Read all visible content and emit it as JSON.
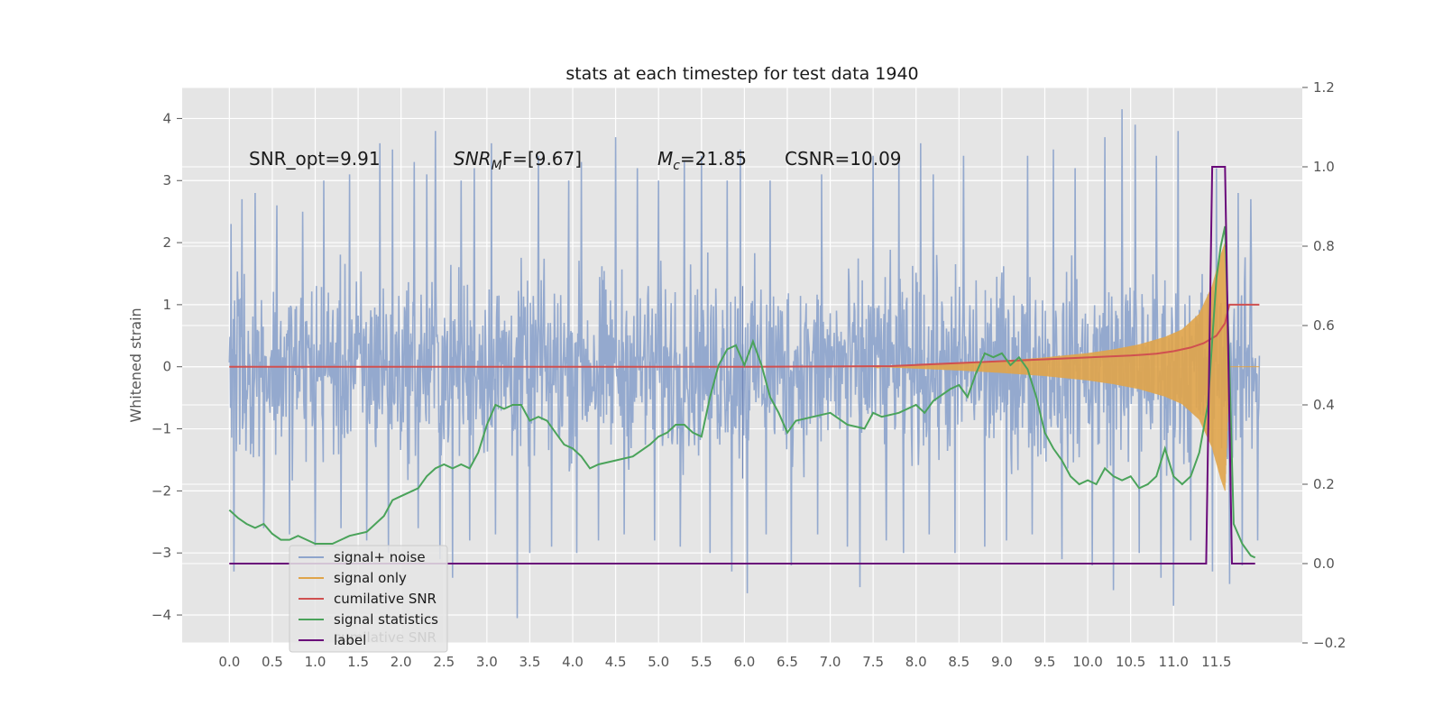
{
  "chart_data": {
    "type": "line",
    "title": "stats at each timestep for test data 1940",
    "xlabel": "",
    "ylabel": "Whitened strain",
    "ylabel_right": "",
    "xlim": [
      -0.55,
      12.5
    ],
    "ylim": [
      -4.45,
      4.5
    ],
    "ylim_right": [
      -0.2,
      1.2
    ],
    "x_ticks": [
      "0.0",
      "0.5",
      "1.0",
      "1.5",
      "2.0",
      "2.5",
      "3.0",
      "3.5",
      "4.0",
      "4.5",
      "5.0",
      "5.5",
      "6.0",
      "6.5",
      "7.0",
      "7.5",
      "8.0",
      "8.5",
      "9.0",
      "9.5",
      "10.0",
      "10.5",
      "11.0",
      "11.5"
    ],
    "y_ticks_left": [
      "4",
      "3",
      "2",
      "1",
      "0",
      "−1",
      "−2",
      "−3",
      "−4"
    ],
    "y_ticks_right": [
      "1.2",
      "1.0",
      "0.8",
      "0.6",
      "0.4",
      "0.2",
      "0.0",
      "−0.2"
    ],
    "grid": true,
    "legend_position": "lower-left",
    "annotations": {
      "snr_opt": "SNR_opt=9.91",
      "snr_mf_main": "SNR",
      "snr_mf_sub": "M",
      "snr_mf_rest": "F=[9.67]",
      "mc_main": "M",
      "mc_sub": "c",
      "mc_rest": "=21.85",
      "csnr": "CSNR=10.09"
    },
    "legend_ghost_text": "cumilative SNR",
    "series": [
      {
        "name": "signal+ noise",
        "axis": "left",
        "color": "#8fa5cc",
        "description_envelope": {
          "x": [
            0,
            12.0
          ],
          "typical_range": [
            -2.0,
            2.0
          ],
          "extremes": [
            -4.05,
            4.15
          ]
        },
        "spikes_up": [
          [
            0.02,
            2.3
          ],
          [
            0.15,
            2.7
          ],
          [
            0.3,
            2.8
          ],
          [
            0.55,
            2.6
          ],
          [
            0.85,
            2.5
          ],
          [
            1.1,
            3.0
          ],
          [
            1.4,
            3.1
          ],
          [
            1.6,
            3.5
          ],
          [
            1.75,
            3.6
          ],
          [
            1.9,
            3.5
          ],
          [
            2.15,
            3.3
          ],
          [
            2.3,
            3.1
          ],
          [
            2.4,
            3.8
          ],
          [
            2.7,
            3.0
          ],
          [
            2.85,
            3.2
          ],
          [
            3.05,
            3.6
          ],
          [
            3.35,
            3.2
          ],
          [
            3.6,
            3.4
          ],
          [
            3.95,
            3.0
          ],
          [
            4.1,
            3.3
          ],
          [
            4.5,
            3.7
          ],
          [
            4.75,
            3.2
          ],
          [
            5.0,
            3.0
          ],
          [
            5.3,
            3.3
          ],
          [
            5.5,
            3.4
          ],
          [
            5.8,
            3.0
          ],
          [
            5.95,
            3.5
          ],
          [
            6.3,
            3.0
          ],
          [
            6.55,
            3.3
          ],
          [
            6.9,
            3.1
          ],
          [
            7.2,
            3.2
          ],
          [
            7.5,
            3.4
          ],
          [
            7.8,
            3.3
          ],
          [
            8.05,
            3.6
          ],
          [
            8.2,
            3.1
          ],
          [
            8.55,
            3.4
          ],
          [
            8.8,
            3.2
          ],
          [
            9.05,
            3.0
          ],
          [
            9.3,
            3.4
          ],
          [
            9.6,
            3.5
          ],
          [
            9.85,
            3.2
          ],
          [
            10.05,
            3.0
          ],
          [
            10.2,
            3.7
          ],
          [
            10.4,
            4.15
          ],
          [
            10.55,
            3.9
          ],
          [
            10.8,
            3.4
          ],
          [
            11.05,
            3.8
          ],
          [
            11.2,
            3.6
          ],
          [
            11.5,
            3.2
          ],
          [
            11.75,
            2.8
          ],
          [
            11.9,
            2.7
          ],
          [
            11.98,
            1.8
          ]
        ],
        "spikes_down": [
          [
            0.05,
            -3.3
          ],
          [
            0.4,
            -2.6
          ],
          [
            0.7,
            -2.7
          ],
          [
            1.0,
            -2.9
          ],
          [
            1.3,
            -2.6
          ],
          [
            1.6,
            -2.8
          ],
          [
            1.85,
            -3.0
          ],
          [
            2.2,
            -2.6
          ],
          [
            2.45,
            -3.1
          ],
          [
            2.6,
            -3.4
          ],
          [
            2.8,
            -2.8
          ],
          [
            3.1,
            -2.7
          ],
          [
            3.35,
            -4.05
          ],
          [
            3.5,
            -3.0
          ],
          [
            3.75,
            -2.9
          ],
          [
            4.05,
            -3.0
          ],
          [
            4.3,
            -2.8
          ],
          [
            4.6,
            -2.7
          ],
          [
            4.95,
            -2.8
          ],
          [
            5.25,
            -2.9
          ],
          [
            5.6,
            -3.0
          ],
          [
            5.85,
            -3.3
          ],
          [
            6.03,
            -3.65
          ],
          [
            6.25,
            -2.7
          ],
          [
            6.55,
            -3.2
          ],
          [
            6.85,
            -2.7
          ],
          [
            7.2,
            -2.9
          ],
          [
            7.35,
            -3.55
          ],
          [
            7.65,
            -2.8
          ],
          [
            7.85,
            -3.0
          ],
          [
            8.15,
            -2.7
          ],
          [
            8.45,
            -3.0
          ],
          [
            8.8,
            -2.9
          ],
          [
            9.05,
            -2.8
          ],
          [
            9.35,
            -2.7
          ],
          [
            9.7,
            -3.1
          ],
          [
            10.05,
            -3.2
          ],
          [
            10.3,
            -3.6
          ],
          [
            10.6,
            -3.0
          ],
          [
            10.85,
            -3.4
          ],
          [
            11.0,
            -3.85
          ],
          [
            11.2,
            -2.8
          ],
          [
            11.45,
            -3.3
          ],
          [
            11.65,
            -3.5
          ],
          [
            11.8,
            -3.2
          ],
          [
            11.98,
            -2.8
          ]
        ],
        "center_spike": [
          [
            5.98,
            1.3
          ],
          [
            5.98,
            -1.8
          ]
        ]
      },
      {
        "name": "signal only",
        "axis": "left",
        "color": "#e0a44a",
        "x": [
          7.5,
          8.0,
          8.5,
          9.0,
          9.5,
          10.0,
          10.3,
          10.6,
          10.9,
          11.1,
          11.3,
          11.45,
          11.55,
          11.6,
          11.65
        ],
        "amplitude": [
          0.0,
          0.03,
          0.06,
          0.1,
          0.15,
          0.22,
          0.28,
          0.36,
          0.48,
          0.6,
          0.85,
          1.3,
          1.8,
          2.0,
          0.0
        ]
      },
      {
        "name": "cumilative SNR",
        "axis": "left",
        "color": "#d05050",
        "x": [
          0.0,
          6.0,
          7.0,
          7.7,
          8.0,
          8.5,
          9.0,
          9.5,
          10.0,
          10.5,
          10.8,
          11.0,
          11.2,
          11.35,
          11.5,
          11.6,
          11.65,
          12.0
        ],
        "y": [
          0.0,
          0.0,
          0.005,
          0.01,
          0.03,
          0.06,
          0.09,
          0.12,
          0.15,
          0.18,
          0.21,
          0.25,
          0.31,
          0.38,
          0.5,
          0.7,
          1.0,
          1.0
        ]
      },
      {
        "name": "signal statistics",
        "axis": "right",
        "color": "#4aa35a",
        "x": [
          0.0,
          0.1,
          0.2,
          0.3,
          0.4,
          0.5,
          0.6,
          0.7,
          0.8,
          0.9,
          1.0,
          1.2,
          1.4,
          1.6,
          1.8,
          1.9,
          2.0,
          2.1,
          2.2,
          2.3,
          2.4,
          2.5,
          2.6,
          2.7,
          2.8,
          2.9,
          3.0,
          3.1,
          3.2,
          3.3,
          3.4,
          3.5,
          3.6,
          3.7,
          3.8,
          3.9,
          4.0,
          4.1,
          4.2,
          4.3,
          4.5,
          4.7,
          4.9,
          5.0,
          5.1,
          5.2,
          5.3,
          5.4,
          5.5,
          5.6,
          5.7,
          5.8,
          5.9,
          6.0,
          6.1,
          6.2,
          6.3,
          6.4,
          6.5,
          6.6,
          6.8,
          7.0,
          7.2,
          7.4,
          7.5,
          7.6,
          7.8,
          8.0,
          8.1,
          8.2,
          8.4,
          8.5,
          8.6,
          8.7,
          8.8,
          8.9,
          9.0,
          9.1,
          9.2,
          9.3,
          9.4,
          9.5,
          9.6,
          9.7,
          9.8,
          9.9,
          10.0,
          10.1,
          10.2,
          10.3,
          10.4,
          10.5,
          10.6,
          10.7,
          10.8,
          10.9,
          11.0,
          11.1,
          11.2,
          11.3,
          11.4,
          11.5,
          11.55,
          11.6,
          11.65,
          11.7,
          11.8,
          11.9,
          11.95
        ],
        "y": [
          0.135,
          0.115,
          0.1,
          0.09,
          0.1,
          0.075,
          0.06,
          0.06,
          0.07,
          0.06,
          0.05,
          0.05,
          0.07,
          0.08,
          0.12,
          0.16,
          0.17,
          0.18,
          0.19,
          0.22,
          0.24,
          0.25,
          0.24,
          0.25,
          0.24,
          0.28,
          0.35,
          0.4,
          0.39,
          0.4,
          0.4,
          0.36,
          0.37,
          0.36,
          0.33,
          0.3,
          0.29,
          0.27,
          0.24,
          0.25,
          0.26,
          0.27,
          0.3,
          0.32,
          0.33,
          0.35,
          0.35,
          0.33,
          0.32,
          0.42,
          0.5,
          0.54,
          0.55,
          0.5,
          0.56,
          0.5,
          0.42,
          0.38,
          0.33,
          0.36,
          0.37,
          0.38,
          0.35,
          0.34,
          0.38,
          0.37,
          0.38,
          0.4,
          0.38,
          0.41,
          0.44,
          0.45,
          0.42,
          0.48,
          0.53,
          0.52,
          0.53,
          0.5,
          0.52,
          0.49,
          0.42,
          0.33,
          0.29,
          0.26,
          0.22,
          0.2,
          0.21,
          0.2,
          0.24,
          0.22,
          0.21,
          0.22,
          0.19,
          0.2,
          0.22,
          0.29,
          0.22,
          0.2,
          0.22,
          0.28,
          0.4,
          0.72,
          0.8,
          0.85,
          0.5,
          0.1,
          0.05,
          0.02,
          0.015
        ]
      },
      {
        "name": "label",
        "axis": "right",
        "color": "#6a0a7a",
        "x": [
          0.0,
          11.38,
          11.45,
          11.6,
          11.68,
          11.95
        ],
        "y": [
          0.0,
          0.0,
          1.0,
          1.0,
          0.0,
          0.0
        ]
      }
    ]
  }
}
